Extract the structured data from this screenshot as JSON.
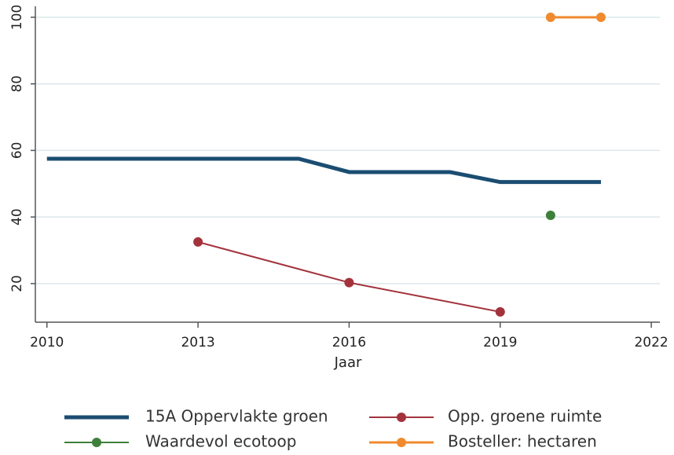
{
  "chart_data": {
    "type": "line",
    "x_label": "Jaar",
    "xlim": [
      2009.77,
      2022.17
    ],
    "xticks": [
      2010,
      2013,
      2016,
      2019,
      2022
    ],
    "ylim": [
      8.4,
      103.3
    ],
    "yticks": [
      20,
      40,
      60,
      80,
      100
    ],
    "grid": true,
    "legend": "bottom",
    "series": [
      {
        "name": "15A Oppervlakte groen",
        "color": "#1b4d72",
        "line_width": 5,
        "markers": false,
        "x": [
          2010,
          2011,
          2012,
          2013,
          2014,
          2015,
          2016,
          2017,
          2018,
          2019,
          2020,
          2021
        ],
        "values": [
          57.5,
          57.5,
          57.5,
          57.5,
          57.5,
          57.5,
          53.5,
          53.5,
          53.5,
          50.5,
          50.5,
          50.5
        ]
      },
      {
        "name": "Opp. groene ruimte",
        "color": "#a3323c",
        "line_width": 2,
        "markers": true,
        "x": [
          2013,
          2016,
          2019
        ],
        "values": [
          32.5,
          20.3,
          11.5
        ]
      },
      {
        "name": "Waardevol ecotoop",
        "color": "#3f7f3c",
        "line_width": 2,
        "markers": true,
        "x": [
          2020
        ],
        "values": [
          40.5
        ]
      },
      {
        "name": "Bosteller: hectaren",
        "color": "#f08a2e",
        "line_width": 3,
        "markers": true,
        "x": [
          2020,
          2021
        ],
        "values": [
          100,
          100
        ]
      }
    ]
  }
}
